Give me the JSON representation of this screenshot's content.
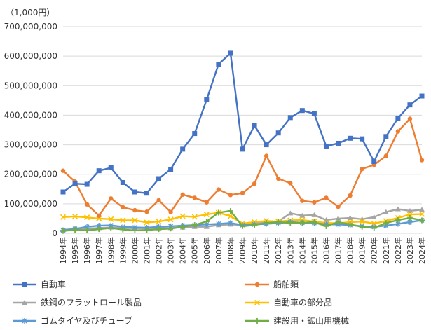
{
  "chart_data": {
    "type": "line",
    "unit_label": "（1,000円）",
    "ylim": [
      0,
      700000000
    ],
    "y_ticks": [
      0,
      100000000,
      200000000,
      300000000,
      400000000,
      500000000,
      600000000,
      700000000
    ],
    "y_tick_labels": [
      "0",
      "100,000,000",
      "200,000,000",
      "300,000,000",
      "400,000,000",
      "500,000,000",
      "600,000,000",
      "700,000,000"
    ],
    "grid": true,
    "legend_position": "bottom",
    "categories": [
      "1994年",
      "1995年",
      "1996年",
      "1997年",
      "1998年",
      "1999年",
      "2000年",
      "2001年",
      "2002年",
      "2003年",
      "2004年",
      "2005年",
      "2006年",
      "2007年",
      "2008年",
      "2009年",
      "2010年",
      "2011年",
      "2012年",
      "2013年",
      "2014年",
      "2015年",
      "2016年",
      "2017年",
      "2018年",
      "2019年",
      "2020年",
      "2021年",
      "2022年",
      "2023年",
      "2024年"
    ],
    "series": [
      {
        "name": "自動車",
        "color": "#4472c4",
        "marker": "square",
        "values": [
          140000000,
          168000000,
          166000000,
          212000000,
          222000000,
          172000000,
          140000000,
          136000000,
          185000000,
          217000000,
          285000000,
          338000000,
          452000000,
          573000000,
          610000000,
          285000000,
          365000000,
          300000000,
          340000000,
          392000000,
          416000000,
          405000000,
          295000000,
          305000000,
          322000000,
          320000000,
          243000000,
          328000000,
          390000000,
          435000000,
          465000000
        ]
      },
      {
        "name": "船舶類",
        "color": "#ed7d31",
        "marker": "circle",
        "values": [
          212000000,
          175000000,
          98000000,
          60000000,
          118000000,
          88000000,
          78000000,
          73000000,
          112000000,
          72000000,
          131000000,
          120000000,
          105000000,
          148000000,
          130000000,
          136000000,
          168000000,
          262000000,
          185000000,
          170000000,
          110000000,
          105000000,
          120000000,
          90000000,
          128000000,
          218000000,
          232000000,
          262000000,
          345000000,
          388000000,
          248000000
        ]
      },
      {
        "name": "鉄鋼のフラットロール製品",
        "color": "#a5a5a5",
        "marker": "triangle",
        "values": [
          12000000,
          15000000,
          16000000,
          18000000,
          20000000,
          18000000,
          17000000,
          16000000,
          17000000,
          18000000,
          20000000,
          22000000,
          22000000,
          28000000,
          30000000,
          28000000,
          33000000,
          38000000,
          40000000,
          68000000,
          60000000,
          62000000,
          45000000,
          50000000,
          52000000,
          48000000,
          55000000,
          72000000,
          82000000,
          76000000,
          80000000
        ]
      },
      {
        "name": "自動車の部分品",
        "color": "#ffc000",
        "marker": "x",
        "values": [
          55000000,
          57000000,
          54000000,
          50000000,
          48000000,
          44000000,
          44000000,
          37000000,
          40000000,
          47000000,
          58000000,
          56000000,
          64000000,
          70000000,
          58000000,
          33000000,
          38000000,
          42000000,
          40000000,
          44000000,
          45000000,
          40000000,
          35000000,
          34000000,
          38000000,
          40000000,
          33000000,
          42000000,
          52000000,
          64000000,
          65000000
        ]
      },
      {
        "name": "ゴムタイヤ及びチューブ",
        "color": "#5b9bd5",
        "marker": "star",
        "values": [
          10000000,
          15000000,
          22000000,
          26000000,
          27000000,
          22000000,
          20000000,
          19000000,
          22000000,
          24000000,
          26000000,
          28000000,
          30000000,
          32000000,
          35000000,
          28000000,
          30000000,
          32000000,
          35000000,
          38000000,
          36000000,
          35000000,
          30000000,
          30000000,
          28000000,
          24000000,
          22000000,
          26000000,
          32000000,
          38000000,
          44000000
        ]
      },
      {
        "name": "建設用・鉱山用機械",
        "color": "#70ad47",
        "marker": "plus",
        "values": [
          8000000,
          12000000,
          10000000,
          14000000,
          18000000,
          13000000,
          10000000,
          11000000,
          14000000,
          16000000,
          22000000,
          28000000,
          40000000,
          70000000,
          76000000,
          24000000,
          28000000,
          35000000,
          38000000,
          35000000,
          36000000,
          38000000,
          24000000,
          38000000,
          30000000,
          22000000,
          18000000,
          35000000,
          45000000,
          52000000,
          44000000
        ]
      }
    ]
  }
}
